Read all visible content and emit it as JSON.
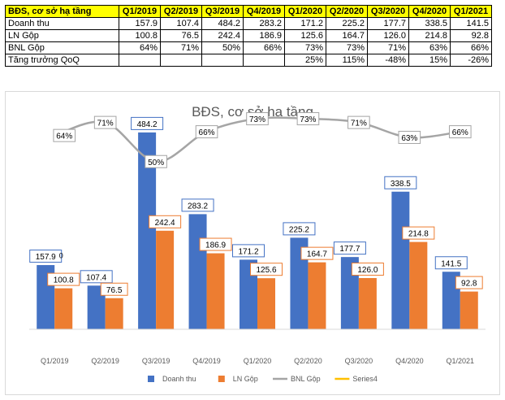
{
  "table": {
    "header": [
      "BĐS, cơ sở hạ tầng",
      "Q1/2019",
      "Q2/2019",
      "Q3/2019",
      "Q4/2019",
      "Q1/2020",
      "Q2/2020",
      "Q3/2020",
      "Q4/2020",
      "Q1/2021"
    ],
    "rows": [
      [
        "Doanh thu",
        "157.9",
        "107.4",
        "484.2",
        "283.2",
        "171.2",
        "225.2",
        "177.7",
        "338.5",
        "141.5"
      ],
      [
        "LN Gộp",
        "100.8",
        "76.5",
        "242.4",
        "186.9",
        "125.6",
        "164.7",
        "126.0",
        "214.8",
        "92.8"
      ],
      [
        "BNL Gộp",
        "64%",
        "71%",
        "50%",
        "66%",
        "73%",
        "73%",
        "71%",
        "63%",
        "66%"
      ],
      [
        "Tăng trưởng QoQ",
        "",
        "",
        "",
        "",
        "25%",
        "115%",
        "-48%",
        "15%",
        "-26%"
      ]
    ]
  },
  "chart_data": {
    "type": "bar",
    "title": "BĐS, cơ sở hạ tầng",
    "categories": [
      "Q1/2019",
      "Q2/2019",
      "Q3/2019",
      "Q4/2019",
      "Q1/2020",
      "Q2/2020",
      "Q3/2020",
      "Q4/2020",
      "Q1/2021"
    ],
    "series": [
      {
        "name": "Doanh thu",
        "kind": "bar",
        "color": "#4472c4",
        "values": [
          157.9,
          107.4,
          484.2,
          283.2,
          171.2,
          225.2,
          177.7,
          338.5,
          141.5
        ],
        "labels": [
          "157.9",
          "107.4",
          "484.2",
          "283.2",
          "171.2",
          "225.2",
          "177.7",
          "338.5",
          "141.5"
        ]
      },
      {
        "name": "LN Gộp",
        "kind": "bar",
        "color": "#ed7d31",
        "values": [
          100.8,
          76.5,
          242.4,
          186.9,
          125.6,
          164.7,
          126.0,
          214.8,
          92.8
        ],
        "labels": [
          "100.8",
          "76.5",
          "242.4",
          "186.9",
          "125.6",
          "164.7",
          "126.0",
          "214.8",
          "92.8"
        ]
      },
      {
        "name": "BNL Gộp",
        "kind": "line",
        "color": "#a5a5a5",
        "axis": "secondary",
        "values": [
          64,
          71,
          50,
          66,
          73,
          73,
          71,
          63,
          66
        ],
        "labels": [
          "64%",
          "71%",
          "50%",
          "66%",
          "73%",
          "73%",
          "71%",
          "63%",
          "66%"
        ]
      },
      {
        "name": "Series4",
        "kind": "line",
        "color": "#ffc000",
        "axis": "secondary",
        "values": [
          0,
          null,
          null,
          null,
          null,
          null,
          null,
          null,
          null
        ],
        "labels": [
          "0",
          "",
          "",
          "",
          "",
          "",
          "",
          "",
          ""
        ]
      }
    ],
    "ylim": [
      0,
      550
    ],
    "y2lim": [
      -40,
      80
    ],
    "legend": "bottom",
    "grid": false
  }
}
